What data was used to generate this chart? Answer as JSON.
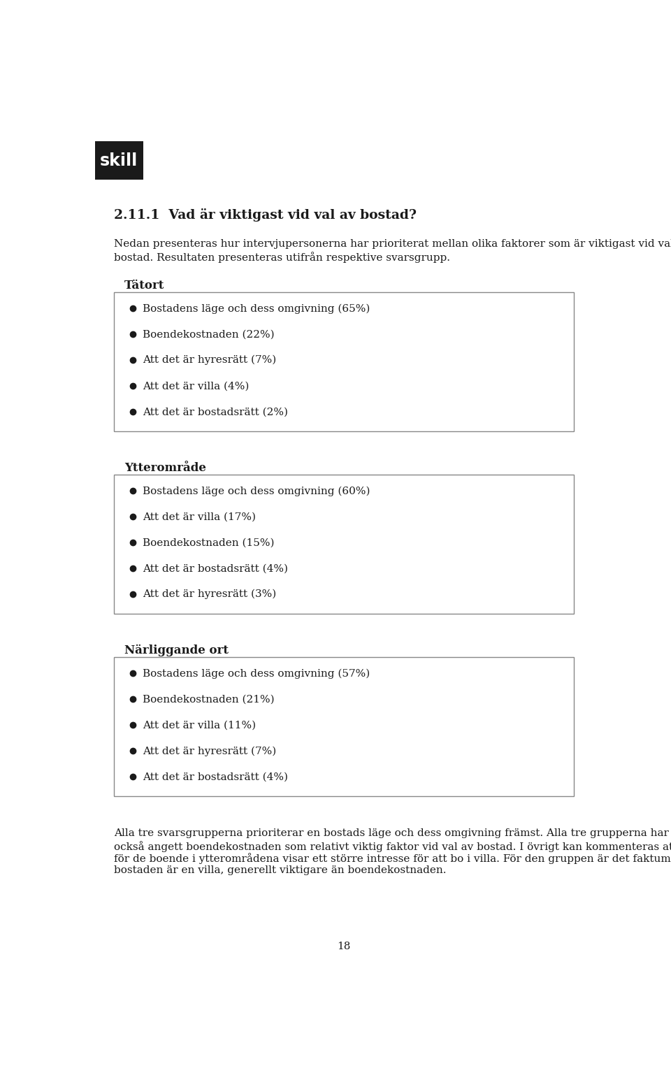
{
  "page_bg": "#ffffff",
  "logo_text": "skill",
  "logo_bg": "#1a1a1a",
  "logo_fg": "#ffffff",
  "heading_number": "2.11.1",
  "heading_text": "Vad är viktigast vid val av bostad?",
  "intro_lines": [
    "Nedan presenteras hur intervjupersonerna har prioriterat mellan olika faktorer som är viktigast vid val av",
    "bostad. Resultaten presenteras utifrån respektive svarsgrupp."
  ],
  "sections": [
    {
      "title": "Tätort",
      "items": [
        "Bostadens läge och dess omgivning (65%)",
        "Boendekostnaden (22%)",
        "Att det är hyresrätt (7%)",
        "Att det är villa (4%)",
        "Att det är bostadsrätt (2%)"
      ]
    },
    {
      "title": "Ytterområde",
      "items": [
        "Bostadens läge och dess omgivning (60%)",
        "Att det är villa (17%)",
        "Boendekostnaden (15%)",
        "Att det är bostadsrätt (4%)",
        "Att det är hyresrätt (3%)"
      ]
    },
    {
      "title": "Närliggande ort",
      "items": [
        "Bostadens läge och dess omgivning (57%)",
        "Boendekostnaden (21%)",
        "Att det är villa (11%)",
        "Att det är hyresrätt (7%)",
        "Att det är bostadsrätt (4%)"
      ]
    }
  ],
  "footer_lines": [
    "Alla tre svarsgrupperna prioriterar en bostads läge och dess omgivning främst. Alla tre grupperna har",
    "också angett boendekostnaden som relativt viktig faktor vid val av bostad. I övrigt kan kommenteras att",
    "för de boende i ytterområdena visar ett större intresse för att bo i villa. För den gruppen är det faktum att",
    "bostaden är en villa, generellt viktigare än boendekostnaden."
  ],
  "page_number": "18",
  "border_color": "#888888",
  "text_color": "#1a1a1a",
  "bullet_color": "#1a1a1a"
}
